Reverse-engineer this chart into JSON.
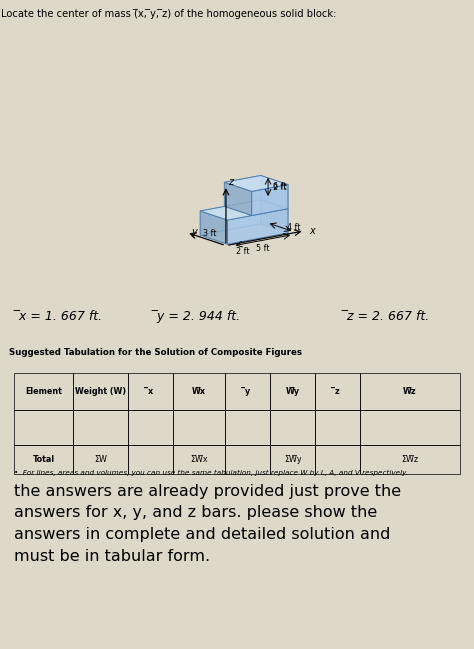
{
  "title_top": "Locate the center of mass (̅x, ̅y, ̅z) of the homogeneous solid block:",
  "answer_x": "̅x = 1. 667 ft.",
  "answer_y": "̅y = 2. 944 ft.",
  "answer_z": "̅z = 2. 667 ft.",
  "table_title": "Suggested Tabulation for the Solution of Composite Figures",
  "table_headers": [
    "Element",
    "Weight (W)",
    "̅x",
    "W̅x",
    "̅y",
    "W̅y",
    "̅z",
    "W̅z"
  ],
  "table_total": [
    "Total",
    "ΣW",
    "",
    "ΣW̅x",
    "",
    "ΣW̅y",
    "",
    "ΣW̅z"
  ],
  "note": "For lines, areas and volumes, you can use the same tabulation, just replace W by L, A, and V respectively.",
  "bottom_text_lines": [
    "the answers are already provided just prove the",
    "answers for x, y, and z bars. please show the",
    "answers in complete and detailed solution and",
    "must be in tabular form."
  ],
  "bg_color_top": "#ddd8c8",
  "bg_color_table": "#e8e4da",
  "bg_color_bottom": "#ffffff",
  "block_face_front": "#a8c8e8",
  "block_face_top": "#c8dff0",
  "block_face_side": "#88aac8",
  "block_edge_color": "#4477aa",
  "col_bounds": [
    0.03,
    0.155,
    0.27,
    0.365,
    0.475,
    0.57,
    0.665,
    0.76,
    0.97
  ]
}
